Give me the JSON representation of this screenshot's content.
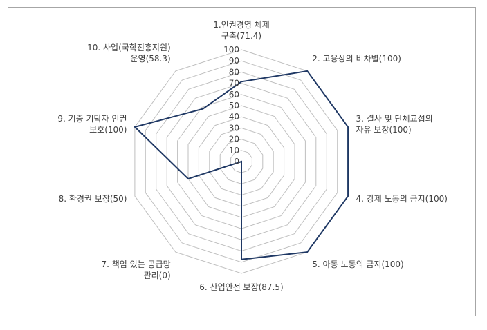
{
  "chart_data": {
    "type": "radar",
    "title": "",
    "categories": [
      "1.인권경영 체제|구축(71.4)",
      "2. 고용상의 비차별(100)",
      "3. 결사 및 단체교섭의|자유 보장(100)",
      "4. 강제 노동의 금지(100)",
      "5. 아동 노동의 금지(100)",
      "6. 산업안전 보장(87.5)",
      "7. 책임 있는 공급망|관리(0)",
      "8. 환경권 보장(50)",
      "9. 기증 기탁자 인권|보호(100)",
      "10. 사업(국학진흥지원)|운영(58.3)"
    ],
    "values": [
      71.4,
      100,
      100,
      100,
      100,
      87.5,
      0,
      50,
      100,
      58.3
    ],
    "rlim": [
      0,
      100
    ],
    "ticks": [
      "0",
      "10",
      "20",
      "30",
      "40",
      "50",
      "60",
      "70",
      "80",
      "90",
      "100"
    ],
    "grid": true,
    "legend": "none",
    "colors": {
      "series": "#1f3864",
      "grid": "#bfbfbf",
      "text": "#404040",
      "border": "#a6a6a6"
    }
  }
}
